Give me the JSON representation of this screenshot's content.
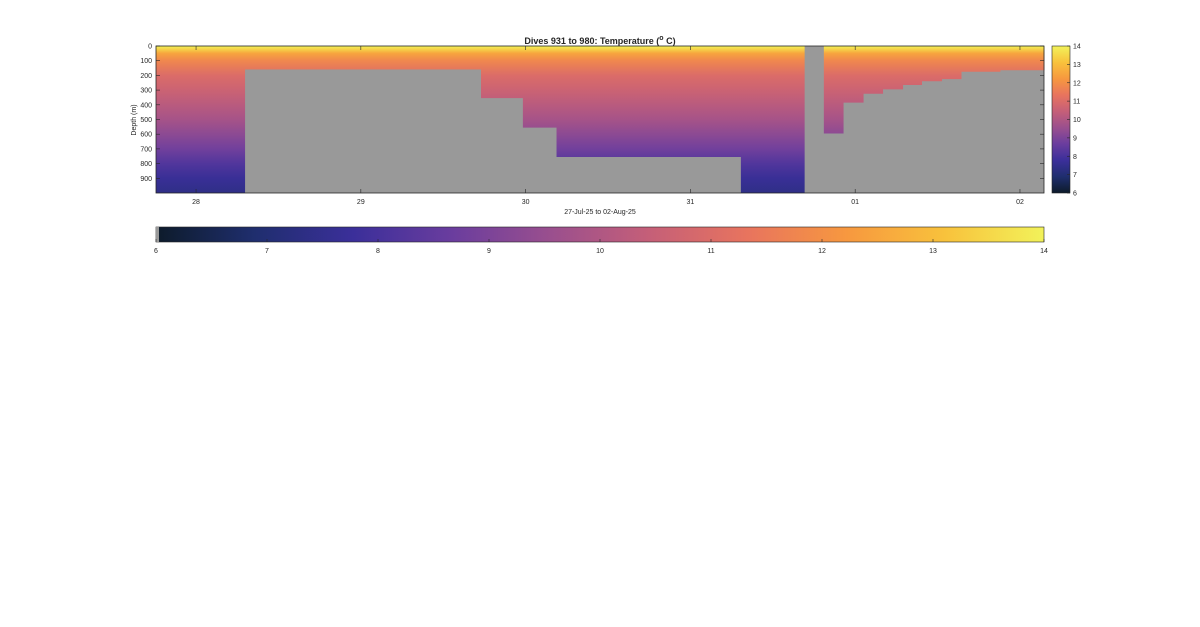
{
  "chart_data": {
    "type": "heatmap",
    "title": "Dives 931 to 980: Temperature (",
    "title_superscript": "o",
    "title_suffix": " C)",
    "xlabel": "27-Jul-25 to 02-Aug-25",
    "ylabel": "Depth (m)",
    "x_unit": "days",
    "xlim": [
      "2025-07-27T18:10",
      "2025-08-02T03:30"
    ],
    "x_ticks": [
      {
        "label": "28",
        "date": "2025-07-28"
      },
      {
        "label": "29",
        "date": "2025-07-29"
      },
      {
        "label": "30",
        "date": "2025-07-30"
      },
      {
        "label": "31",
        "date": "2025-07-31"
      },
      {
        "label": "01",
        "date": "2025-08-01"
      },
      {
        "label": "02",
        "date": "2025-08-02"
      }
    ],
    "ylim": [
      0,
      1000
    ],
    "y_ticks": [
      0,
      100,
      200,
      300,
      400,
      500,
      600,
      700,
      800,
      900
    ],
    "y_reversed": true,
    "colorbar": {
      "clim": [
        6,
        14
      ],
      "ticks": [
        6,
        7,
        8,
        9,
        10,
        11,
        12,
        13,
        14
      ],
      "no_data_color": "#999999",
      "colormap_stops": [
        "#0d1b2a",
        "#1f2e6e",
        "#3b2f9a",
        "#6a3d9e",
        "#9a4f8e",
        "#c55f78",
        "#e8745e",
        "#f7983f",
        "#f8c23c",
        "#f2f25a"
      ]
    },
    "dive_columns": [
      {
        "start": "2025-07-27T18:10",
        "end": "2025-07-28T07:05",
        "max_depth": 1000
      },
      {
        "start": "2025-07-28T07:05",
        "end": "2025-07-29T17:30",
        "max_depth": 160
      },
      {
        "start": "2025-07-29T17:30",
        "end": "2025-07-29T23:35",
        "max_depth": 355
      },
      {
        "start": "2025-07-29T23:35",
        "end": "2025-07-30T04:30",
        "max_depth": 555
      },
      {
        "start": "2025-07-30T04:30",
        "end": "2025-07-31T07:20",
        "max_depth": 755
      },
      {
        "start": "2025-07-31T07:20",
        "end": "2025-07-31T16:35",
        "max_depth": 1000
      },
      {
        "start": "2025-07-31T16:35",
        "end": "2025-07-31T19:25",
        "max_depth": 0
      },
      {
        "start": "2025-07-31T19:25",
        "end": "2025-07-31T22:15",
        "max_depth": 595
      },
      {
        "start": "2025-07-31T22:15",
        "end": "2025-08-01T01:10",
        "max_depth": 385
      },
      {
        "start": "2025-08-01T01:10",
        "end": "2025-08-01T04:00",
        "max_depth": 325
      },
      {
        "start": "2025-08-01T04:00",
        "end": "2025-08-01T06:55",
        "max_depth": 295
      },
      {
        "start": "2025-08-01T06:55",
        "end": "2025-08-01T09:40",
        "max_depth": 265
      },
      {
        "start": "2025-08-01T09:40",
        "end": "2025-08-01T12:35",
        "max_depth": 240
      },
      {
        "start": "2025-08-01T12:35",
        "end": "2025-08-01T15:25",
        "max_depth": 225
      },
      {
        "start": "2025-08-01T15:25",
        "end": "2025-08-01T21:05",
        "max_depth": 175
      },
      {
        "start": "2025-08-01T21:05",
        "end": "2025-08-02T03:30",
        "max_depth": 165
      }
    ],
    "temperature_profile": [
      {
        "depth": 0,
        "value": 14.0
      },
      {
        "depth": 15,
        "value": 13.6
      },
      {
        "depth": 50,
        "value": 12.5
      },
      {
        "depth": 100,
        "value": 11.8
      },
      {
        "depth": 200,
        "value": 11.0
      },
      {
        "depth": 300,
        "value": 10.6
      },
      {
        "depth": 400,
        "value": 10.2
      },
      {
        "depth": 500,
        "value": 9.8
      },
      {
        "depth": 600,
        "value": 9.3
      },
      {
        "depth": 700,
        "value": 8.8
      },
      {
        "depth": 800,
        "value": 8.2
      },
      {
        "depth": 900,
        "value": 7.7
      },
      {
        "depth": 1000,
        "value": 7.4
      }
    ]
  }
}
